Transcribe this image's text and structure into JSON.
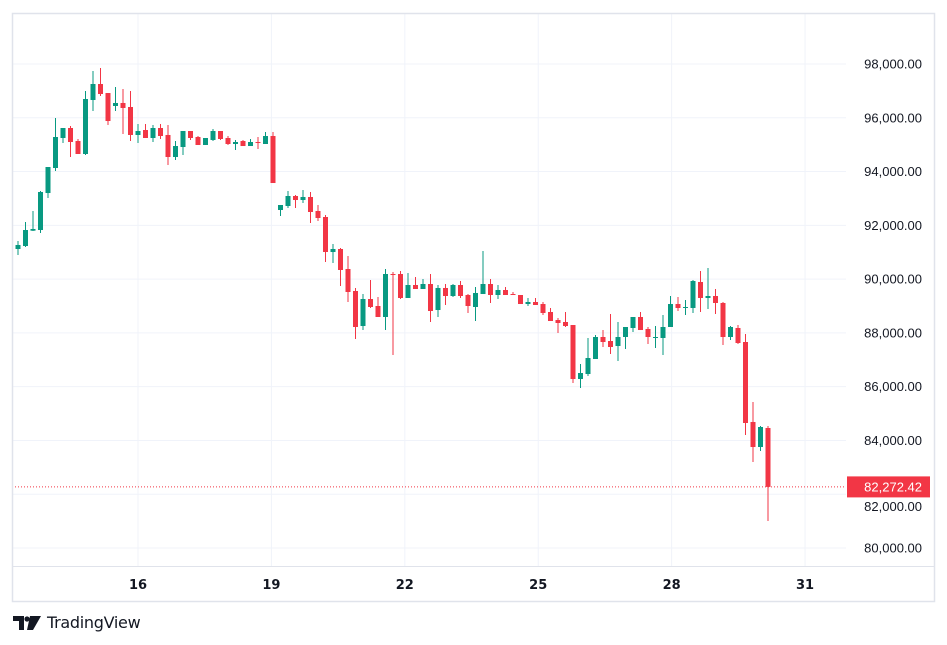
{
  "brand": {
    "name": "TradingView"
  },
  "colors": {
    "up": "#089981",
    "down": "#F23645",
    "grid": "#F0F3FA",
    "border": "#E0E3EB",
    "text": "#131722"
  },
  "chart_data": {
    "type": "candlestick",
    "title": "",
    "x_ticks": [
      "16",
      "19",
      "22",
      "25",
      "28",
      "31"
    ],
    "y_ticks": [
      80000,
      82000,
      84000,
      86000,
      88000,
      90000,
      92000,
      94000,
      96000,
      98000
    ],
    "y_tick_labels": [
      "80,000.00",
      "82,000.00",
      "84,000.00",
      "86,000.00",
      "88,000.00",
      "90,000.00",
      "92,000.00",
      "94,000.00",
      "96,000.00",
      "98,000.00"
    ],
    "ylim": [
      79300,
      99900
    ],
    "last_price": 82272.42,
    "last_price_label": "82,272.42",
    "grid": true,
    "candle_fields": [
      "open",
      "high",
      "low",
      "close"
    ],
    "candles": [
      [
        91120,
        91417,
        90897,
        91269
      ],
      [
        91231,
        92124,
        91194,
        91826
      ],
      [
        91800,
        92533,
        91789,
        91864
      ],
      [
        91826,
        93277,
        91715,
        93240
      ],
      [
        93202,
        94169,
        93017,
        94169
      ],
      [
        94132,
        95992,
        94021,
        95285
      ],
      [
        95248,
        95620,
        95062,
        95620
      ],
      [
        95620,
        95694,
        94541,
        95099
      ],
      [
        95136,
        95211,
        94653,
        94653
      ],
      [
        94653,
        96996,
        94616,
        96698
      ],
      [
        96661,
        97740,
        96252,
        97256
      ],
      [
        97256,
        97851,
        96810,
        96884
      ],
      [
        96921,
        96921,
        95731,
        95880
      ],
      [
        96438,
        97145,
        96252,
        96550
      ],
      [
        96550,
        97070,
        95397,
        96364
      ],
      [
        96401,
        96996,
        95136,
        95360
      ],
      [
        95360,
        95769,
        95062,
        95508
      ],
      [
        95545,
        95769,
        95248,
        95248
      ],
      [
        95248,
        95731,
        95099,
        95620
      ],
      [
        95620,
        95769,
        95211,
        95322
      ],
      [
        95360,
        95731,
        94244,
        94541
      ],
      [
        94541,
        95136,
        94430,
        94950
      ],
      [
        94913,
        95508,
        94616,
        95508
      ],
      [
        95508,
        95508,
        95174,
        95248
      ],
      [
        95285,
        95322,
        94988,
        94988
      ],
      [
        94988,
        95248,
        94988,
        95248
      ],
      [
        95174,
        95583,
        95136,
        95508
      ],
      [
        95508,
        95508,
        95174,
        95211
      ],
      [
        95248,
        95322,
        94988,
        95025
      ],
      [
        95025,
        95174,
        94802,
        95099
      ],
      [
        95136,
        95174,
        94950,
        94950
      ],
      [
        94950,
        95211,
        94950,
        95099
      ],
      [
        95099,
        95285,
        94839,
        95062
      ],
      [
        95025,
        95471,
        95025,
        95322
      ],
      [
        95322,
        95471,
        93574,
        93574
      ],
      [
        92570,
        92756,
        92347,
        92756
      ],
      [
        92719,
        93277,
        92645,
        93091
      ],
      [
        93091,
        93128,
        92645,
        92942
      ],
      [
        92942,
        93314,
        92831,
        93054
      ],
      [
        93054,
        93240,
        92087,
        92496
      ],
      [
        92533,
        92756,
        92161,
        92273
      ],
      [
        92310,
        92384,
        90636,
        91008
      ],
      [
        91008,
        91306,
        90599,
        91120
      ],
      [
        91120,
        91157,
        89744,
        90339
      ],
      [
        90376,
        90860,
        89149,
        89521
      ],
      [
        89558,
        89670,
        87773,
        88219
      ],
      [
        88256,
        89446,
        88107,
        89260
      ],
      [
        89260,
        89967,
        88926,
        88963
      ],
      [
        89000,
        89335,
        88591,
        88591
      ],
      [
        88591,
        90376,
        88107,
        90190
      ],
      [
        90190,
        90265,
        87178,
        90153
      ],
      [
        90190,
        90302,
        89260,
        89298
      ],
      [
        89298,
        90227,
        89298,
        89781
      ],
      [
        89781,
        90078,
        89632,
        89632
      ],
      [
        89632,
        90004,
        89632,
        89818
      ],
      [
        89818,
        90190,
        88405,
        88814
      ],
      [
        88851,
        89781,
        88591,
        89670
      ],
      [
        89670,
        89818,
        89037,
        89372
      ],
      [
        89372,
        89818,
        89335,
        89781
      ],
      [
        89781,
        89930,
        89298,
        89372
      ],
      [
        89409,
        89446,
        88740,
        89000
      ],
      [
        88963,
        89707,
        88442,
        89484
      ],
      [
        89446,
        91045,
        89446,
        89818
      ],
      [
        89818,
        90004,
        89112,
        89409
      ],
      [
        89409,
        89781,
        89260,
        89595
      ],
      [
        89595,
        89707,
        89409,
        89409
      ],
      [
        89446,
        89521,
        89409,
        89409
      ],
      [
        89409,
        89409,
        89074,
        89074
      ],
      [
        89074,
        89298,
        89000,
        89149
      ],
      [
        89149,
        89298,
        89037,
        89037
      ],
      [
        89074,
        89149,
        88665,
        88740
      ],
      [
        88777,
        88926,
        88442,
        88442
      ],
      [
        88479,
        88554,
        87996,
        88368
      ],
      [
        88405,
        88777,
        88219,
        88256
      ],
      [
        88293,
        88293,
        86136,
        86285
      ],
      [
        86285,
        86843,
        85950,
        86508
      ],
      [
        86471,
        87810,
        86397,
        87066
      ],
      [
        87029,
        87922,
        87029,
        87847
      ],
      [
        87847,
        88107,
        87475,
        87661
      ],
      [
        87698,
        88703,
        87215,
        87475
      ],
      [
        87512,
        88405,
        86955,
        87847
      ],
      [
        87847,
        88219,
        87401,
        88219
      ],
      [
        88182,
        88591,
        88033,
        88591
      ],
      [
        88591,
        88777,
        88107,
        88107
      ],
      [
        88145,
        88219,
        87587,
        87847
      ],
      [
        87810,
        88256,
        87438,
        87847
      ],
      [
        87810,
        88665,
        87178,
        88219
      ],
      [
        88219,
        89372,
        88219,
        89074
      ],
      [
        89074,
        89335,
        88814,
        88926
      ],
      [
        88926,
        89223,
        88665,
        88963
      ],
      [
        88926,
        89967,
        88740,
        89930
      ],
      [
        89893,
        90302,
        88777,
        89298
      ],
      [
        89298,
        90413,
        88888,
        89372
      ],
      [
        89372,
        89632,
        88703,
        89112
      ],
      [
        89112,
        89149,
        87550,
        87847
      ],
      [
        87847,
        88256,
        87735,
        88219
      ],
      [
        88182,
        88293,
        87587,
        87624
      ],
      [
        87661,
        87959,
        84202,
        84649
      ],
      [
        84686,
        85430,
        83198,
        83756
      ],
      [
        83756,
        84537,
        83607,
        84500
      ],
      [
        84463,
        84537,
        81004,
        82272.42
      ]
    ]
  }
}
